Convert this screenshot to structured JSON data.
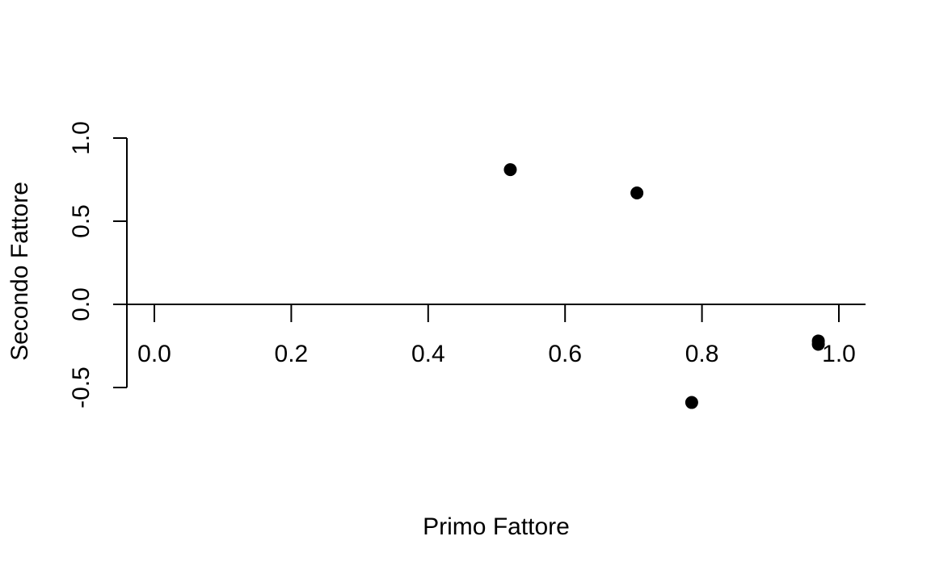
{
  "chart_data": {
    "type": "scatter",
    "title": "",
    "xlabel": "Primo Fattore",
    "ylabel": "Secondo Fattore",
    "xlim": [
      -0.04,
      1.04
    ],
    "ylim": [
      -0.62,
      1.0
    ],
    "x_ticks": [
      0.0,
      0.2,
      0.4,
      0.6,
      0.8,
      1.0
    ],
    "x_tick_labels": [
      "0.0",
      "0.2",
      "0.4",
      "0.6",
      "0.8",
      "1.0"
    ],
    "y_ticks": [
      -0.5,
      0.0,
      0.5,
      1.0
    ],
    "y_tick_labels": [
      "-0.5",
      "0.0",
      "0.5",
      "1.0"
    ],
    "x_axis_at_y": 0.0,
    "grid": false,
    "legend": "none",
    "point_color": "#000000",
    "series": [
      {
        "points": [
          {
            "x": 0.52,
            "y": 0.81
          },
          {
            "x": 0.705,
            "y": 0.67
          },
          {
            "x": 0.785,
            "y": -0.59
          },
          {
            "x": 0.97,
            "y": -0.22
          },
          {
            "x": 0.97,
            "y": -0.24
          }
        ]
      }
    ]
  }
}
